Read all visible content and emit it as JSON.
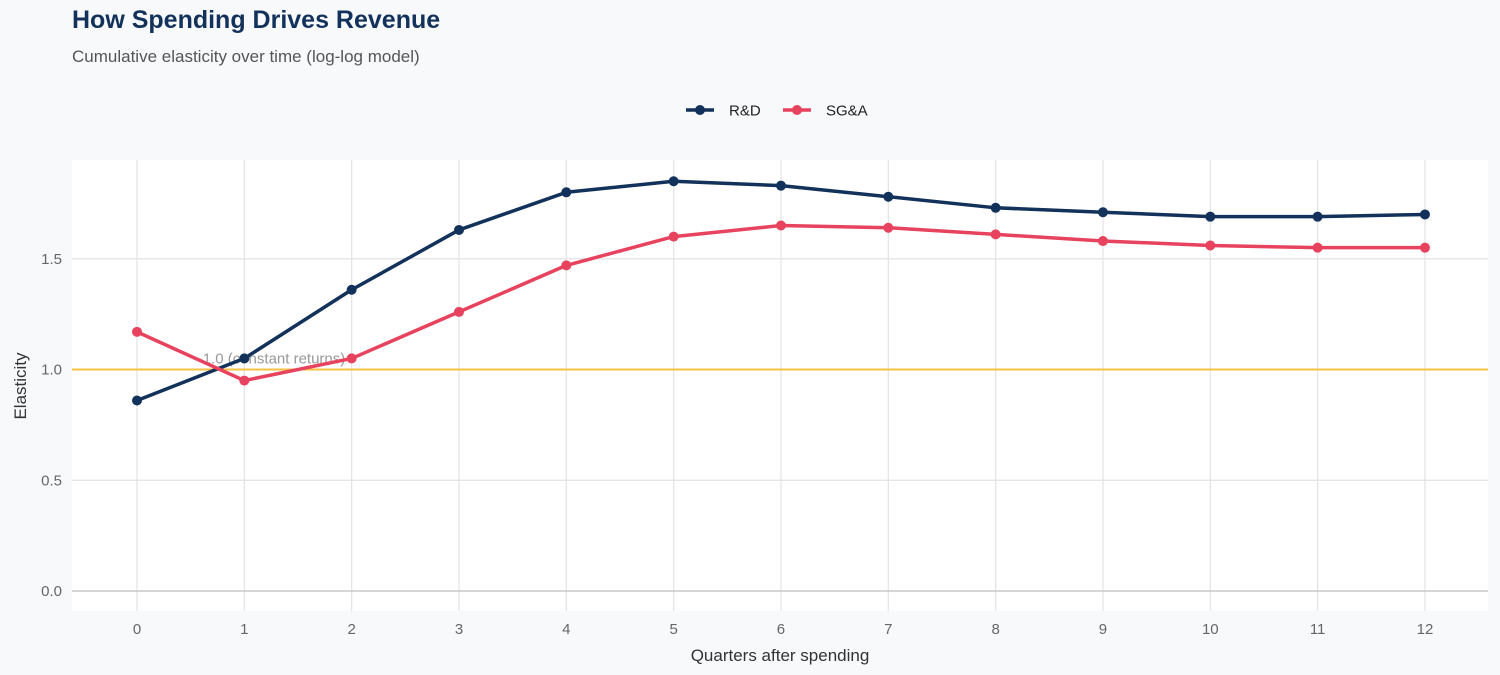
{
  "chart_data": {
    "type": "line",
    "title": "How Spending Drives Revenue",
    "subtitle": "Cumulative elasticity over time (log-log model)",
    "xlabel": "Quarters after spending",
    "ylabel": "Elasticity",
    "x": [
      0,
      1,
      2,
      3,
      4,
      5,
      6,
      7,
      8,
      9,
      10,
      11,
      12
    ],
    "xlim": [
      -0.6,
      12.6
    ],
    "ylim": [
      -0.09,
      1.94
    ],
    "yticks": [
      0.0,
      0.5,
      1.0,
      1.5
    ],
    "ytick_labels": [
      "0.0",
      "0.5",
      "1.0",
      "1.5"
    ],
    "xtick_labels": [
      "0",
      "1",
      "2",
      "3",
      "4",
      "5",
      "6",
      "7",
      "8",
      "9",
      "10",
      "11",
      "12"
    ],
    "grid": true,
    "legend_position": "top",
    "series": [
      {
        "name": "R&D",
        "color": "#13325b",
        "values": [
          0.86,
          1.05,
          1.36,
          1.63,
          1.8,
          1.85,
          1.83,
          1.78,
          1.73,
          1.71,
          1.69,
          1.69,
          1.7
        ]
      },
      {
        "name": "SG&A",
        "color": "#e8435e",
        "values": [
          1.17,
          0.95,
          1.05,
          1.26,
          1.47,
          1.6,
          1.65,
          1.64,
          1.61,
          1.58,
          1.56,
          1.55,
          1.55
        ]
      }
    ],
    "reference_line": {
      "y": 1.0,
      "color": "#f5c242",
      "label": "1.0 (constant returns)"
    }
  }
}
